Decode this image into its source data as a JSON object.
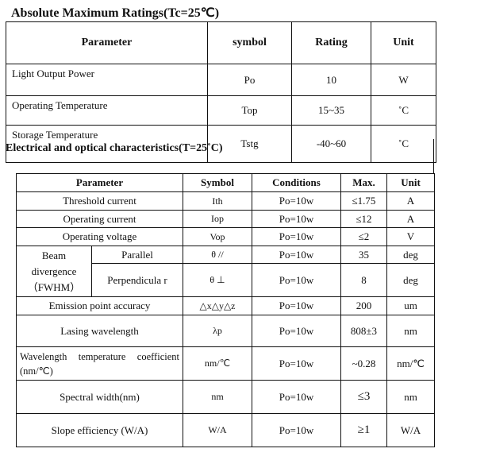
{
  "absolute_max": {
    "title": "Absolute Maximum Ratings(Tc=25℃)",
    "headers": [
      "Parameter",
      "symbol",
      "Rating",
      "Unit"
    ],
    "rows": [
      {
        "parameter": "Light Output Power",
        "symbol": "Po",
        "rating": "10",
        "unit": "W"
      },
      {
        "parameter": "Operating Temperature",
        "symbol": "Top",
        "rating": "15~35",
        "unit": "˚C"
      },
      {
        "parameter": "Storage Temperature",
        "symbol": "Tstg",
        "rating": "-40~60",
        "unit": "˚C"
      }
    ]
  },
  "electrical": {
    "title": "Electrical and optical characteristics(T=25˚C)",
    "headers": [
      "Parameter",
      "Symbol",
      "Conditions",
      "Max.",
      "Unit"
    ],
    "rows": [
      {
        "parameter": "Threshold current",
        "symbol": "Ith",
        "conditions": "Po=10w",
        "max": "≤1.75",
        "unit": "A"
      },
      {
        "parameter": "Operating current",
        "symbol": "Iop",
        "conditions": "Po=10w",
        "max": "≤12",
        "unit": "A"
      },
      {
        "parameter": "Operating voltage",
        "symbol": "Vop",
        "conditions": "Po=10w",
        "max": "≤2",
        "unit": "V"
      },
      {
        "parameter": "Beam divergence （FWHM）",
        "sub": "Parallel",
        "symbol": "θ //",
        "conditions": "Po=10w",
        "max": "35",
        "unit": "deg"
      },
      {
        "sub": "Perpendicula r",
        "symbol": "θ ⊥",
        "conditions": "Po=10w",
        "max": "8",
        "unit": "deg"
      },
      {
        "parameter": "Emission point accuracy",
        "symbol": "△x△y△z",
        "conditions": "Po=10w",
        "max": "200",
        "unit": "um"
      },
      {
        "parameter": "Lasing wavelength",
        "symbol": "λp",
        "conditions": "Po=10w",
        "max": "808±3",
        "unit": "nm"
      },
      {
        "parameter": "Wavelength temperature coefficient (nm/℃)",
        "symbol": "nm/℃",
        "conditions": "Po=10w",
        "max": "~0.28",
        "unit": "nm/℃"
      },
      {
        "parameter": "Spectral width(nm)",
        "symbol": "nm",
        "conditions": "Po=10w",
        "max": "≤3",
        "unit": "nm"
      },
      {
        "parameter": "Slope efficiency (W/A)",
        "symbol": "W/A",
        "conditions": "Po=10w",
        "max": "≥1",
        "unit": "W/A"
      }
    ]
  }
}
